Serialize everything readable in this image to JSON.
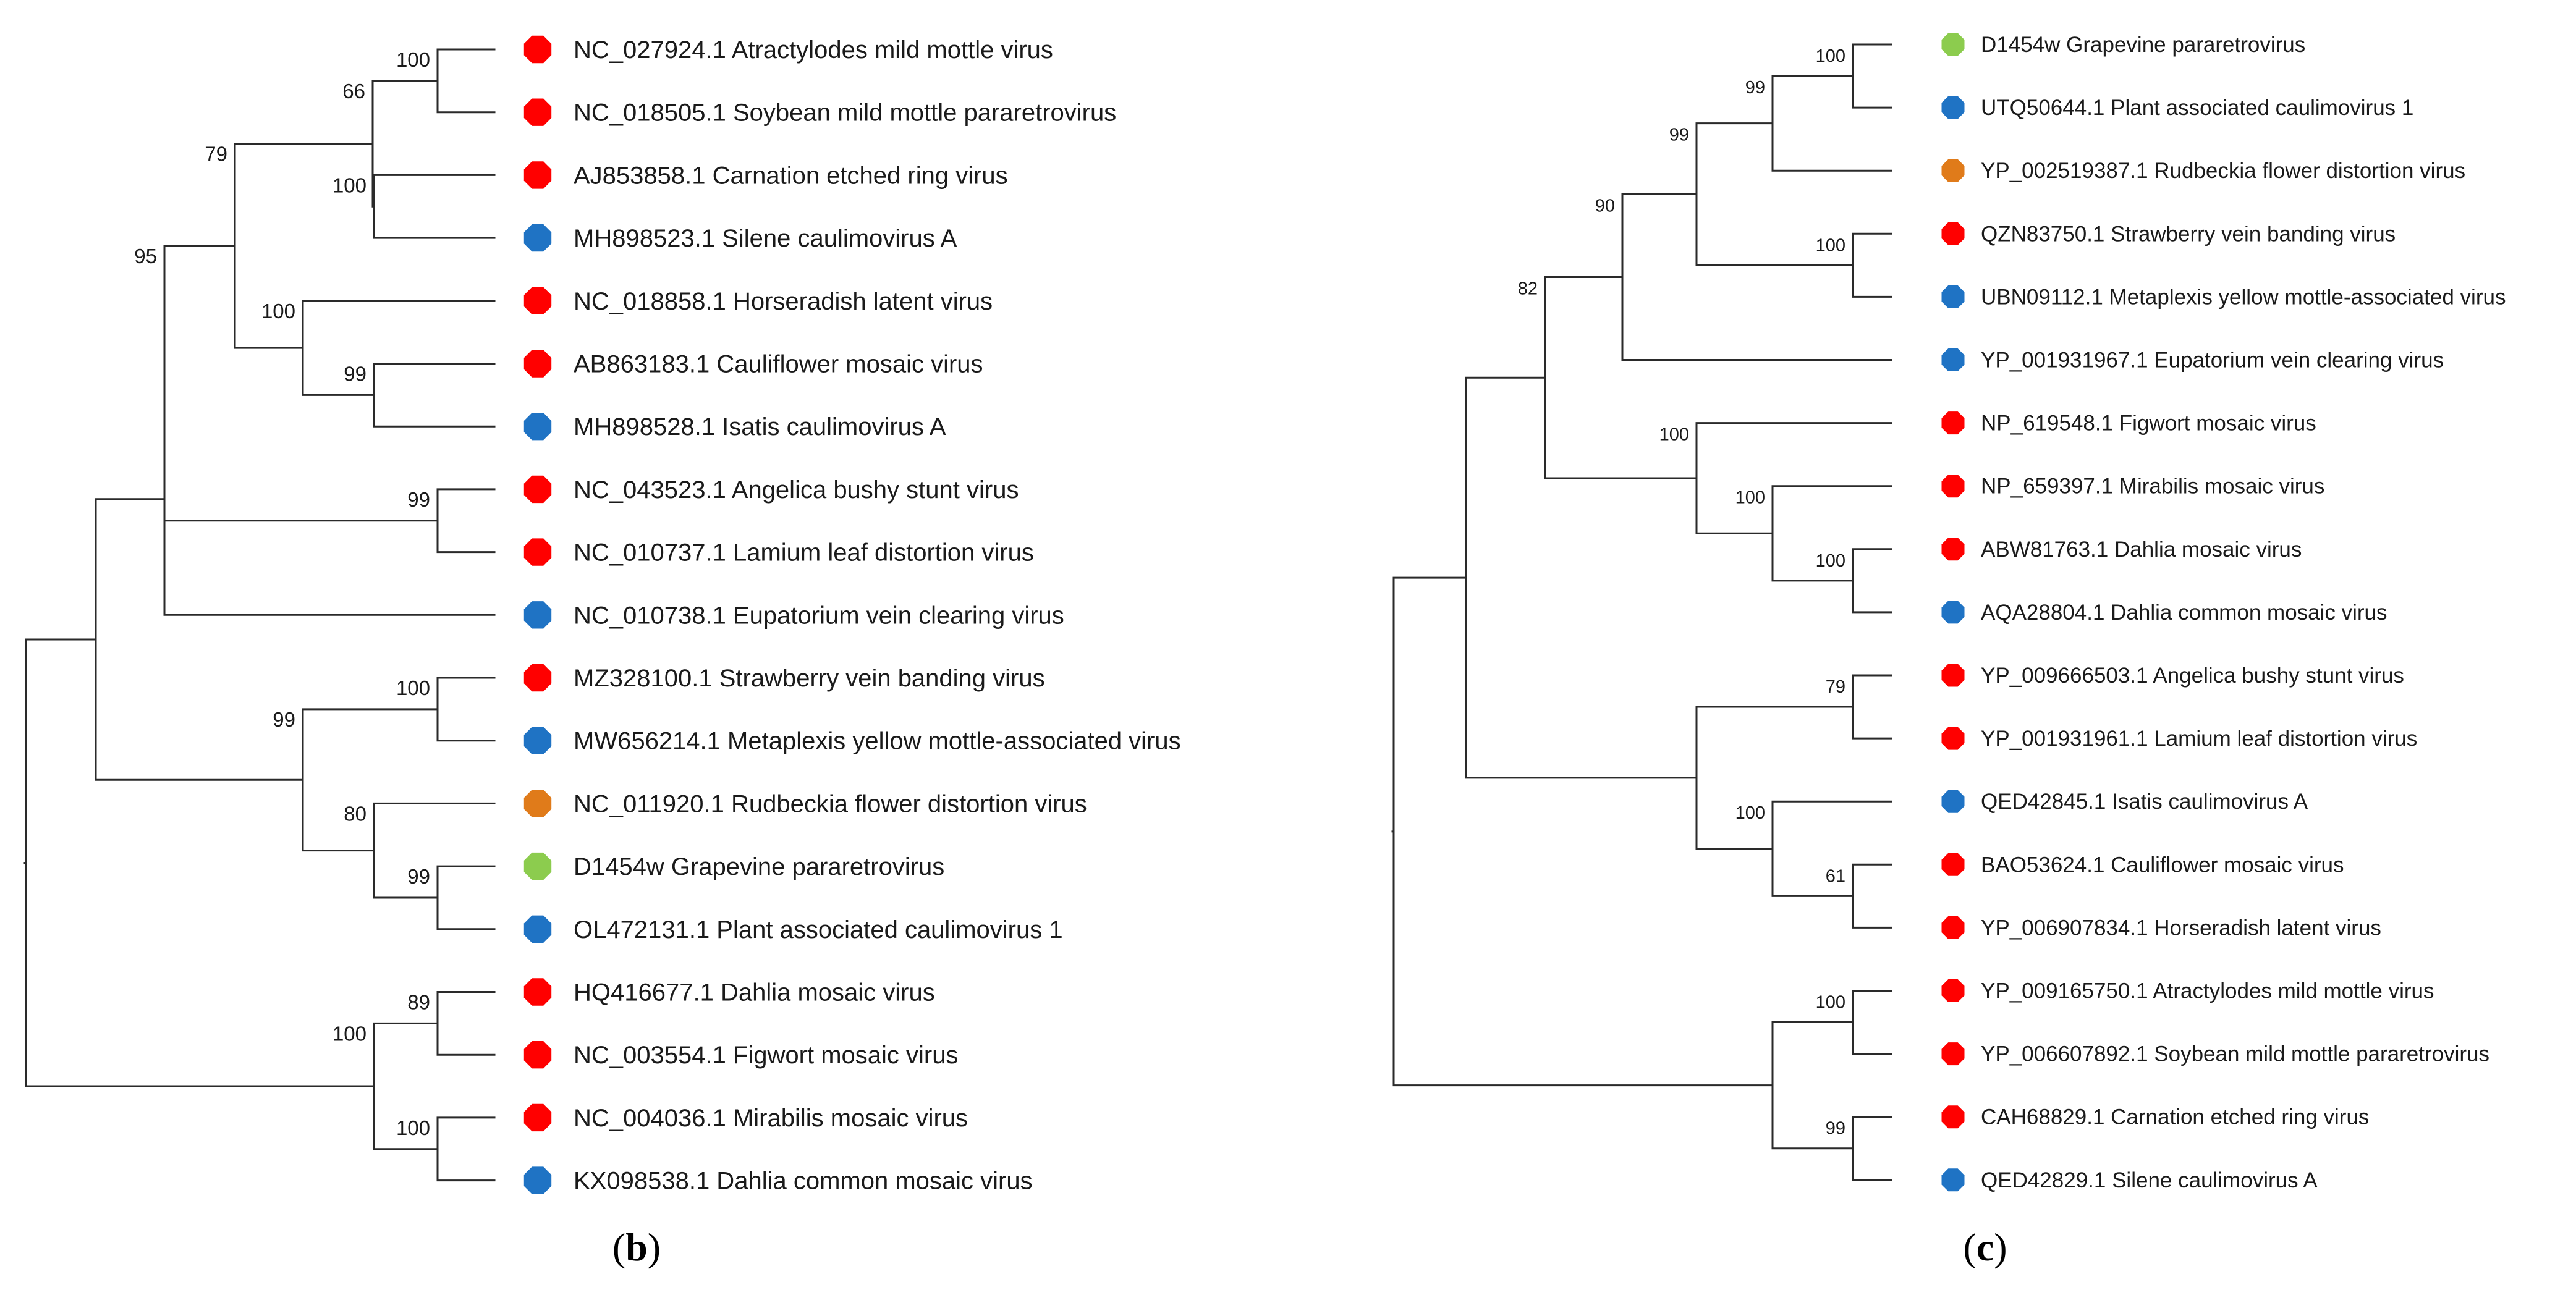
{
  "colors": {
    "red": "#ff0000",
    "blue": "#1f73c4",
    "orange": "#e07b1a",
    "green": "#8ccc4e",
    "branch": "#2a2a2a"
  },
  "panels": [
    {
      "id": "b",
      "label_open": "(",
      "label_letter": "b",
      "label_close": ")",
      "leaves": [
        {
          "text": "NC_027924.1 Atractylodes mild mottle virus",
          "color": "red"
        },
        {
          "text": "NC_018505.1 Soybean mild mottle pararetrovirus",
          "color": "red"
        },
        {
          "text": "AJ853858.1 Carnation etched ring virus",
          "color": "red"
        },
        {
          "text": "MH898523.1 Silene caulimovirus A",
          "color": "blue"
        },
        {
          "text": "NC_018858.1 Horseradish latent virus",
          "color": "red"
        },
        {
          "text": "AB863183.1 Cauliflower mosaic virus",
          "color": "red"
        },
        {
          "text": "MH898528.1 Isatis caulimovirus A",
          "color": "blue"
        },
        {
          "text": "NC_043523.1 Angelica bushy stunt virus",
          "color": "red"
        },
        {
          "text": "NC_010737.1 Lamium leaf distortion virus",
          "color": "red"
        },
        {
          "text": "NC_010738.1 Eupatorium vein clearing virus",
          "color": "blue"
        },
        {
          "text": "MZ328100.1 Strawberry vein banding virus",
          "color": "red"
        },
        {
          "text": "MW656214.1 Metaplexis yellow mottle-associated virus",
          "color": "blue"
        },
        {
          "text": "NC_011920.1 Rudbeckia flower distortion virus",
          "color": "orange"
        },
        {
          "text": "D1454w Grapevine pararetrovirus",
          "color": "green"
        },
        {
          "text": "OL472131.1 Plant associated caulimovirus 1",
          "color": "blue"
        },
        {
          "text": "HQ416677.1 Dahlia mosaic virus",
          "color": "red"
        },
        {
          "text": "NC_003554.1 Figwort mosaic virus",
          "color": "red"
        },
        {
          "text": "NC_004036.1 Mirabilis mosaic virus",
          "color": "red"
        },
        {
          "text": "KX098538.1 Dahlia common mosaic virus",
          "color": "blue"
        }
      ],
      "bootstrap": [
        "100",
        "66",
        "100",
        "79",
        "100",
        "99",
        "99",
        "95",
        "100",
        "80",
        "99",
        "99",
        "89",
        "100",
        "100"
      ]
    },
    {
      "id": "c",
      "label_open": "(",
      "label_letter": "c",
      "label_close": ")",
      "leaves": [
        {
          "text": "D1454w Grapevine pararetrovirus",
          "color": "green"
        },
        {
          "text": "UTQ50644.1 Plant associated caulimovirus 1",
          "color": "blue"
        },
        {
          "text": "YP_002519387.1 Rudbeckia flower distortion virus",
          "color": "orange"
        },
        {
          "text": "QZN83750.1 Strawberry vein banding virus",
          "color": "red"
        },
        {
          "text": "UBN09112.1 Metaplexis yellow mottle-associated virus",
          "color": "blue"
        },
        {
          "text": "YP_001931967.1 Eupatorium vein clearing virus",
          "color": "blue"
        },
        {
          "text": "NP_619548.1 Figwort mosaic virus",
          "color": "red"
        },
        {
          "text": "NP_659397.1 Mirabilis mosaic virus",
          "color": "red"
        },
        {
          "text": "ABW81763.1 Dahlia mosaic virus",
          "color": "red"
        },
        {
          "text": "AQA28804.1 Dahlia common mosaic virus",
          "color": "blue"
        },
        {
          "text": "YP_009666503.1 Angelica bushy stunt virus",
          "color": "red"
        },
        {
          "text": "YP_001931961.1 Lamium leaf distortion virus",
          "color": "red"
        },
        {
          "text": "QED42845.1 Isatis caulimovirus A",
          "color": "blue"
        },
        {
          "text": "BAO53624.1 Cauliflower mosaic virus",
          "color": "red"
        },
        {
          "text": "YP_006907834.1 Horseradish latent virus",
          "color": "red"
        },
        {
          "text": "YP_009165750.1 Atractylodes mild mottle virus",
          "color": "red"
        },
        {
          "text": "YP_006607892.1 Soybean mild mottle pararetrovirus",
          "color": "red"
        },
        {
          "text": "CAH68829.1 Carnation etched ring virus",
          "color": "red"
        },
        {
          "text": "QED42829.1 Silene caulimovirus A",
          "color": "blue"
        }
      ],
      "bootstrap": [
        "100",
        "99",
        "99",
        "100",
        "90",
        "82",
        "100",
        "100",
        "100",
        "79",
        "100",
        "61",
        "100",
        "99"
      ]
    }
  ]
}
